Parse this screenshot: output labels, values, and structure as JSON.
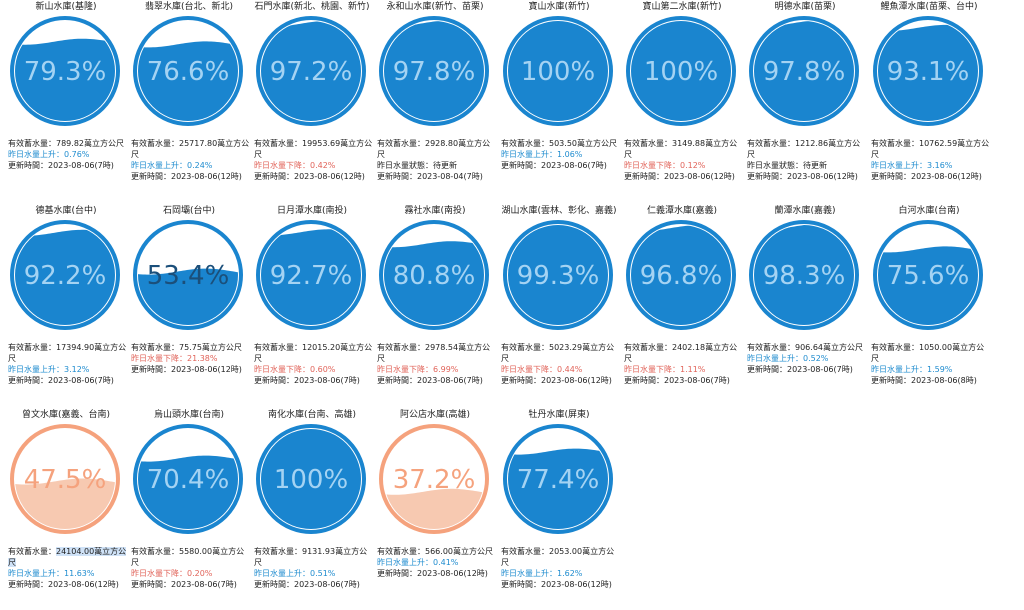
{
  "colors": {
    "normal_fill": "#1a85cf",
    "normal_ring": "#1a85cf",
    "normal_text": "#a4d3f3",
    "low_fill": "#f7c9b1",
    "low_ring": "#f5a27d",
    "low_text": "#f5a27d",
    "up": "#1f8ccf",
    "down": "#e1645a"
  },
  "labels": {
    "storage": "有效蓄水量：",
    "updated": "更新時間："
  },
  "reservoirs": [
    {
      "name": "新山水庫(基隆)",
      "percent": "79.3%",
      "level": 0.793,
      "status": "normal",
      "storage": "789.82萬立方公尺",
      "change_text": "昨日水量上升：0.76%",
      "change_dir": "up",
      "updated": "2023-08-06(7時)"
    },
    {
      "name": "翡翠水庫(台北、新北)",
      "percent": "76.6%",
      "level": 0.766,
      "status": "normal",
      "storage": "25717.80萬立方公尺",
      "change_text": "昨日水量上升：0.24%",
      "change_dir": "up",
      "updated": "2023-08-06(12時)"
    },
    {
      "name": "石門水庫(新北、桃園、新竹)",
      "percent": "97.2%",
      "level": 0.972,
      "status": "normal",
      "storage": "19953.69萬立方公尺",
      "change_text": "昨日水量下降：0.42%",
      "change_dir": "down",
      "updated": "2023-08-06(12時)"
    },
    {
      "name": "永和山水庫(新竹、苗栗)",
      "percent": "97.8%",
      "level": 0.978,
      "status": "normal",
      "storage": "2928.80萬立方公尺",
      "change_text": "昨日水量狀態：待更新",
      "change_dir": "neutral",
      "updated": "2023-08-04(7時)"
    },
    {
      "name": "寶山水庫(新竹)",
      "percent": "100%",
      "level": 1.0,
      "status": "normal",
      "storage": "503.50萬立方公尺",
      "change_text": "昨日水量上升：1.06%",
      "change_dir": "up",
      "updated": "2023-08-06(7時)"
    },
    {
      "name": "寶山第二水庫(新竹)",
      "percent": "100%",
      "level": 1.0,
      "status": "normal",
      "storage": "3149.88萬立方公尺",
      "change_text": "昨日水量下降：0.12%",
      "change_dir": "down",
      "updated": "2023-08-06(12時)"
    },
    {
      "name": "明德水庫(苗栗)",
      "percent": "97.8%",
      "level": 0.978,
      "status": "normal",
      "storage": "1212.86萬立方公尺",
      "change_text": "昨日水量狀態：待更新",
      "change_dir": "neutral",
      "updated": "2023-08-06(12時)"
    },
    {
      "name": "鯉魚潭水庫(苗栗、台中)",
      "percent": "93.1%",
      "level": 0.931,
      "status": "normal",
      "storage": "10762.59萬立方公尺",
      "change_text": "昨日水量上升：3.16%",
      "change_dir": "up",
      "updated": "2023-08-06(12時)"
    },
    {
      "name": "德基水庫(台中)",
      "percent": "92.2%",
      "level": 0.922,
      "status": "normal",
      "storage": "17394.90萬立方公尺",
      "change_text": "昨日水量上升：3.12%",
      "change_dir": "up",
      "updated": "2023-08-06(7時)"
    },
    {
      "name": "石岡壩(台中)",
      "percent": "53.4%",
      "level": 0.534,
      "status": "normal",
      "storage": "75.75萬立方公尺",
      "change_text": "昨日水量下降：21.38%",
      "change_dir": "down",
      "updated": "2023-08-06(12時)"
    },
    {
      "name": "日月潭水庫(南投)",
      "percent": "92.7%",
      "level": 0.927,
      "status": "normal",
      "storage": "12015.20萬立方公尺",
      "change_text": "昨日水量下降：0.60%",
      "change_dir": "down",
      "updated": "2023-08-06(7時)"
    },
    {
      "name": "霧社水庫(南投)",
      "percent": "80.8%",
      "level": 0.808,
      "status": "normal",
      "storage": "2978.54萬立方公尺",
      "change_text": "昨日水量下降：6.99%",
      "change_dir": "down",
      "updated": "2023-08-06(7時)"
    },
    {
      "name": "湖山水庫(雲林、彰化、嘉義)",
      "percent": "99.3%",
      "level": 0.993,
      "status": "normal",
      "storage": "5023.29萬立方公尺",
      "change_text": "昨日水量下降：0.44%",
      "change_dir": "down",
      "updated": "2023-08-06(12時)"
    },
    {
      "name": "仁義潭水庫(嘉義)",
      "percent": "96.8%",
      "level": 0.968,
      "status": "normal",
      "storage": "2402.18萬立方公尺",
      "change_text": "昨日水量下降：1.11%",
      "change_dir": "down",
      "updated": "2023-08-06(7時)"
    },
    {
      "name": "蘭潭水庫(嘉義)",
      "percent": "98.3%",
      "level": 0.983,
      "status": "normal",
      "storage": "906.64萬立方公尺",
      "change_text": "昨日水量上升：0.52%",
      "change_dir": "up",
      "updated": "2023-08-06(7時)"
    },
    {
      "name": "白河水庫(台南)",
      "percent": "75.6%",
      "level": 0.756,
      "status": "normal",
      "storage": "1050.00萬立方公尺",
      "change_text": "昨日水量上升：1.59%",
      "change_dir": "up",
      "updated": "2023-08-06(8時)"
    },
    {
      "name": "曾文水庫(嘉義、台南)",
      "percent": "47.5%",
      "level": 0.475,
      "status": "low",
      "storage": "24104.00萬立方公尺",
      "change_text": "昨日水量上升：11.63%",
      "change_dir": "up",
      "updated": "2023-08-06(12時)",
      "highlight": true
    },
    {
      "name": "烏山頭水庫(台南)",
      "percent": "70.4%",
      "level": 0.704,
      "status": "normal",
      "storage": "5580.00萬立方公尺",
      "change_text": "昨日水量下降：0.20%",
      "change_dir": "down",
      "updated": "2023-08-06(7時)"
    },
    {
      "name": "南化水庫(台南、高雄)",
      "percent": "100%",
      "level": 1.0,
      "status": "normal",
      "storage": "9131.93萬立方公尺",
      "change_text": "昨日水量上升：0.51%",
      "change_dir": "up",
      "updated": "2023-08-06(7時)"
    },
    {
      "name": "阿公店水庫(高雄)",
      "percent": "37.2%",
      "level": 0.372,
      "status": "low",
      "storage": "566.00萬立方公尺",
      "change_text": "昨日水量上升：0.41%",
      "change_dir": "up",
      "updated": "2023-08-06(12時)"
    },
    {
      "name": "牡丹水庫(屏東)",
      "percent": "77.4%",
      "level": 0.774,
      "status": "normal",
      "storage": "2053.00萬立方公尺",
      "change_text": "昨日水量上升：1.62%",
      "change_dir": "up",
      "updated": "2023-08-06(12時)"
    }
  ]
}
